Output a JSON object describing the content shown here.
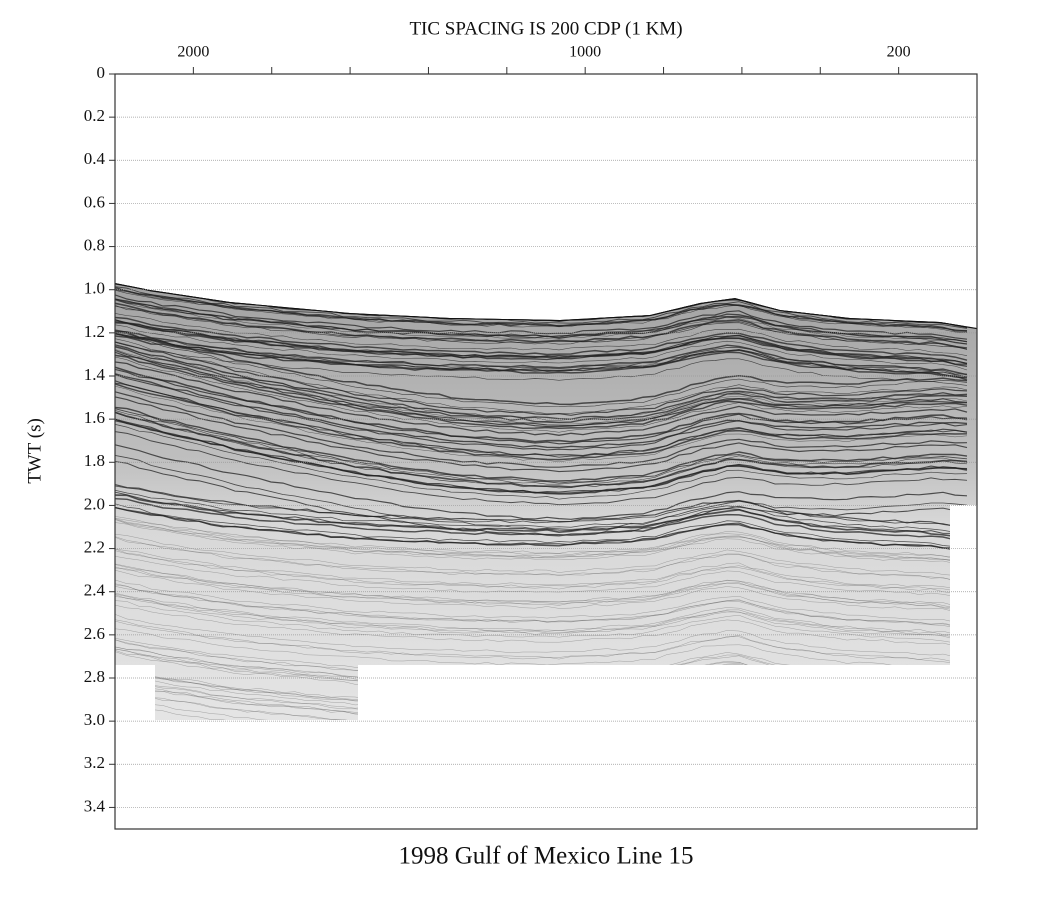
{
  "chart_data": {
    "type": "seismic-section",
    "title": "TIC SPACING IS 200 CDP (1 KM)",
    "ylabel": "TWT (s)",
    "caption": "1998 Gulf of Mexico Line 15",
    "xlim": [
      2200,
      0
    ],
    "xticks": [
      2000,
      1000,
      200
    ],
    "xticks_minor": [
      1800,
      1600,
      1400,
      1200,
      800,
      600,
      400
    ],
    "ylim": [
      0,
      3.5
    ],
    "yticks": [
      0,
      0.2,
      0.4,
      0.6,
      0.8,
      {
        "value": 1,
        "label": "1.0"
      },
      1.2,
      1.4,
      1.6,
      1.8,
      {
        "value": 2,
        "label": "2.0"
      },
      2.2,
      2.4,
      2.6,
      2.8,
      {
        "value": 3,
        "label": "3.0"
      },
      3.2,
      3.4
    ],
    "grid": true
  }
}
